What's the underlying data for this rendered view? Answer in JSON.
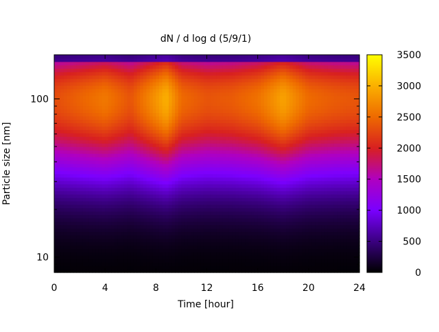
{
  "chart_data": {
    "type": "heatmap",
    "title": "dN / d log d (5/9/1)",
    "xlabel": "Time [hour]",
    "ylabel": "Particle size [nm]",
    "xlim": [
      0,
      24
    ],
    "x_ticks": [
      "0",
      "4",
      "8",
      "12",
      "16",
      "20",
      "24"
    ],
    "y_scale": "log",
    "ylim_nm": [
      8,
      190
    ],
    "y_ticks": [
      "10",
      "100"
    ],
    "colorbar": {
      "range": [
        0,
        3500
      ],
      "ticks": [
        "0",
        "500",
        "1000",
        "1500",
        "2000",
        "2500",
        "3000",
        "3500"
      ],
      "colormap": [
        "#000000",
        "#3a0080",
        "#7a00ff",
        "#b000c0",
        "#d82020",
        "#ee6a00",
        "#fbb000",
        "#ffff00"
      ]
    },
    "grid": false,
    "size_distribution": {
      "time_h": [
        0,
        2,
        4,
        6,
        8,
        8.8,
        10,
        12,
        14,
        16,
        18,
        20,
        22,
        24
      ],
      "peak_diameter_nm": [
        100,
        100,
        100,
        100,
        100,
        100,
        100,
        100,
        100,
        100,
        100,
        100,
        100,
        100
      ],
      "peak_dN_dlogd": [
        2300,
        2450,
        2600,
        2350,
        2800,
        3000,
        2500,
        2350,
        2400,
        2550,
        2900,
        2500,
        2400,
        2350
      ]
    }
  }
}
